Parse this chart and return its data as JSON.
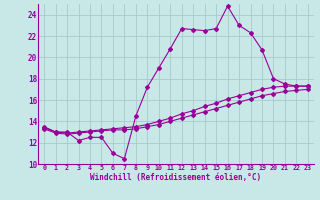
{
  "xlabel": "Windchill (Refroidissement éolien,°C)",
  "bg_color": "#c8e8e8",
  "line_color": "#990099",
  "grid_color": "#a8c8cc",
  "xlim": [
    -0.5,
    23.5
  ],
  "ylim": [
    10,
    25
  ],
  "xticks": [
    0,
    1,
    2,
    3,
    4,
    5,
    6,
    7,
    8,
    9,
    10,
    11,
    12,
    13,
    14,
    15,
    16,
    17,
    18,
    19,
    20,
    21,
    22,
    23
  ],
  "yticks": [
    10,
    12,
    14,
    16,
    18,
    20,
    22,
    24
  ],
  "series": {
    "max": [
      13.5,
      13.0,
      13.0,
      12.2,
      12.5,
      12.5,
      11.0,
      10.5,
      14.5,
      17.2,
      19.0,
      20.8,
      22.7,
      22.6,
      22.5,
      22.7,
      24.8,
      23.0,
      22.3,
      20.7,
      18.0,
      17.5,
      17.3,
      17.3
    ],
    "mean": [
      13.4,
      13.0,
      12.9,
      13.0,
      13.1,
      13.2,
      13.3,
      13.4,
      13.5,
      13.7,
      14.0,
      14.3,
      14.7,
      15.0,
      15.4,
      15.7,
      16.1,
      16.4,
      16.7,
      17.0,
      17.2,
      17.3,
      17.3,
      17.3
    ],
    "min": [
      13.3,
      12.9,
      12.8,
      12.9,
      13.0,
      13.1,
      13.2,
      13.2,
      13.3,
      13.5,
      13.7,
      14.0,
      14.3,
      14.6,
      14.9,
      15.2,
      15.5,
      15.8,
      16.1,
      16.4,
      16.6,
      16.8,
      16.9,
      17.0
    ]
  }
}
